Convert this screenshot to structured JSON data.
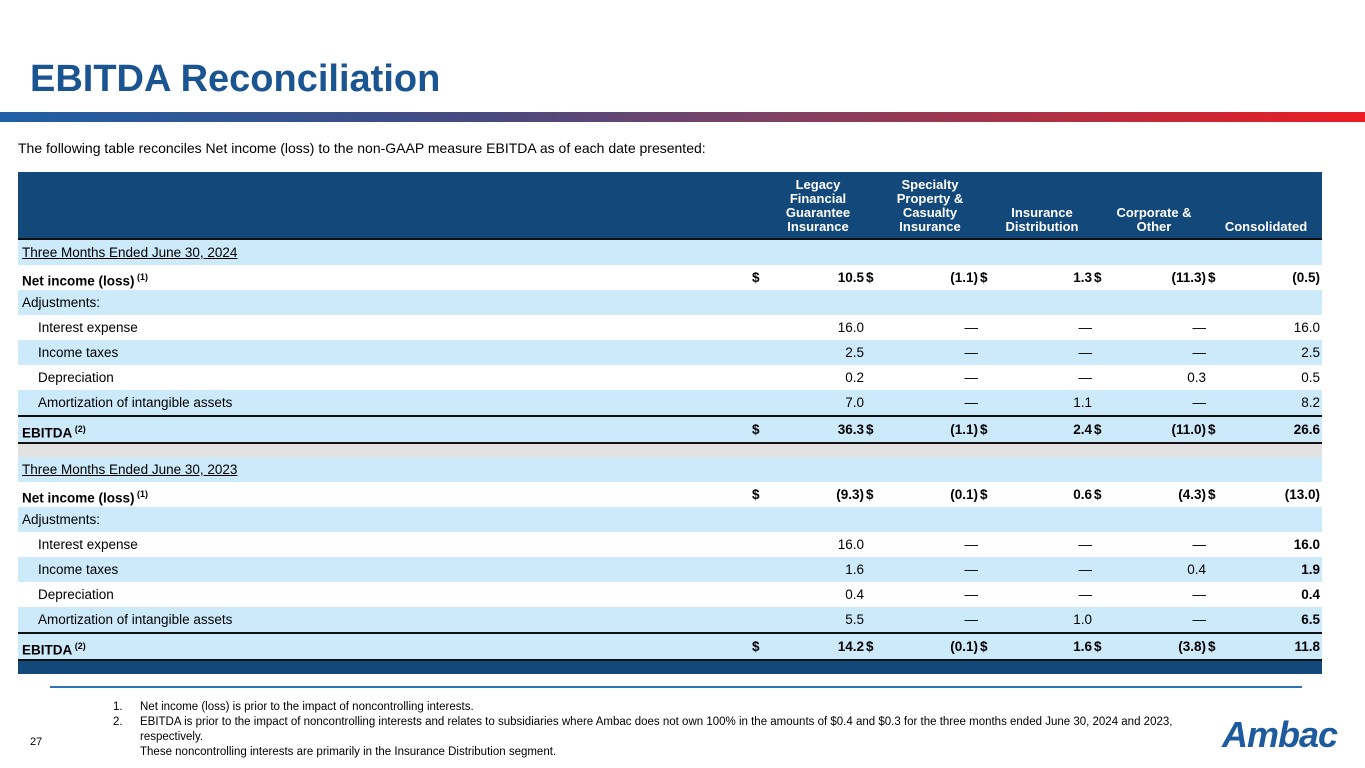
{
  "slide": {
    "title": "EBITDA Reconciliation",
    "subtitle": "The following table reconciles Net income (loss) to the non-GAAP measure EBITDA  as of each date presented:",
    "page_number": "27",
    "logo_text": "Ambac"
  },
  "colors": {
    "title_blue": "#1a5591",
    "table_header_blue": "#13487a",
    "row_light_blue": "#cdeafb",
    "spacer_gray": "#e2e2e2",
    "gradient_left_blue": "#1f5fa6",
    "gradient_right_red": "#ed1c24",
    "footnote_rule_blue": "#2e74b5",
    "logo_blue": "#1d5a9e"
  },
  "table": {
    "column_headers": [
      {
        "lines": [
          "Legacy",
          "Financial",
          "Guarantee",
          "Insurance"
        ]
      },
      {
        "lines": [
          "Specialty",
          "Property &",
          "Casualty",
          "Insurance"
        ]
      },
      {
        "lines": [
          "Insurance",
          "Distribution"
        ]
      },
      {
        "lines": [
          "Corporate &",
          "Other"
        ]
      },
      {
        "lines": [
          "Consolidated"
        ]
      }
    ],
    "sections": [
      {
        "period": "Three Months Ended June 30, 2024",
        "rows": [
          {
            "label": "Net income (loss)",
            "sup": "(1)",
            "bold": true,
            "dollar": true,
            "values": [
              "10.5",
              "(1.1)",
              "1.3",
              "(11.3)",
              "(0.5)"
            ]
          },
          {
            "label": "Adjustments:",
            "values": []
          },
          {
            "label": "Interest expense",
            "indent": true,
            "values": [
              "16.0",
              "—",
              "—",
              "—",
              "16.0"
            ]
          },
          {
            "label": "Income taxes",
            "indent": true,
            "values": [
              "2.5",
              "—",
              "—",
              "—",
              "2.5"
            ]
          },
          {
            "label": "Depreciation",
            "indent": true,
            "values": [
              "0.2",
              "—",
              "—",
              "0.3",
              "0.5"
            ]
          },
          {
            "label": "Amortization of intangible assets",
            "indent": true,
            "values": [
              "7.0",
              "—",
              "1.1",
              "—",
              "8.2"
            ]
          }
        ],
        "total": {
          "label": "EBITDA",
          "sup": "(2)",
          "bold": true,
          "dollar": true,
          "values": [
            "36.3",
            "(1.1)",
            "2.4",
            "(11.0)",
            "26.6"
          ]
        }
      },
      {
        "period": "Three Months Ended June 30, 2023",
        "rows": [
          {
            "label": "Net income (loss)",
            "sup": "(1)",
            "bold": true,
            "dollar": true,
            "values": [
              "(9.3)",
              "(0.1)",
              "0.6",
              "(4.3)",
              "(13.0)"
            ]
          },
          {
            "label": "Adjustments:",
            "values": []
          },
          {
            "label": "Interest expense",
            "indent": true,
            "bold_last": true,
            "values": [
              "16.0",
              "—",
              "—",
              "—",
              "16.0"
            ]
          },
          {
            "label": "Income taxes",
            "indent": true,
            "bold_last": true,
            "values": [
              "1.6",
              "—",
              "—",
              "0.4",
              "1.9"
            ]
          },
          {
            "label": "Depreciation",
            "indent": true,
            "bold_last": true,
            "values": [
              "0.4",
              "—",
              "—",
              "—",
              "0.4"
            ]
          },
          {
            "label": "Amortization of intangible assets",
            "indent": true,
            "bold_last": true,
            "values": [
              "5.5",
              "—",
              "1.0",
              "—",
              "6.5"
            ]
          }
        ],
        "total": {
          "label": "EBITDA",
          "sup": "(2)",
          "bold": true,
          "dollar": true,
          "values": [
            "14.2",
            "(0.1)",
            "1.6",
            "(3.8)",
            "11.8"
          ]
        }
      }
    ]
  },
  "footnotes": {
    "items": [
      {
        "num": "1.",
        "lines": [
          "Net income (loss) is prior to the impact of noncontrolling interests."
        ]
      },
      {
        "num": "2.",
        "lines": [
          "EBITDA is prior to the impact of noncontrolling interests and relates to subsidiaries where Ambac does not own 100% in the amounts of $0.4 and $0.3 for the three months ended June 30, 2024 and 2023, respectively.",
          "These noncontrolling interests are primarily in the Insurance Distribution segment."
        ]
      }
    ]
  }
}
